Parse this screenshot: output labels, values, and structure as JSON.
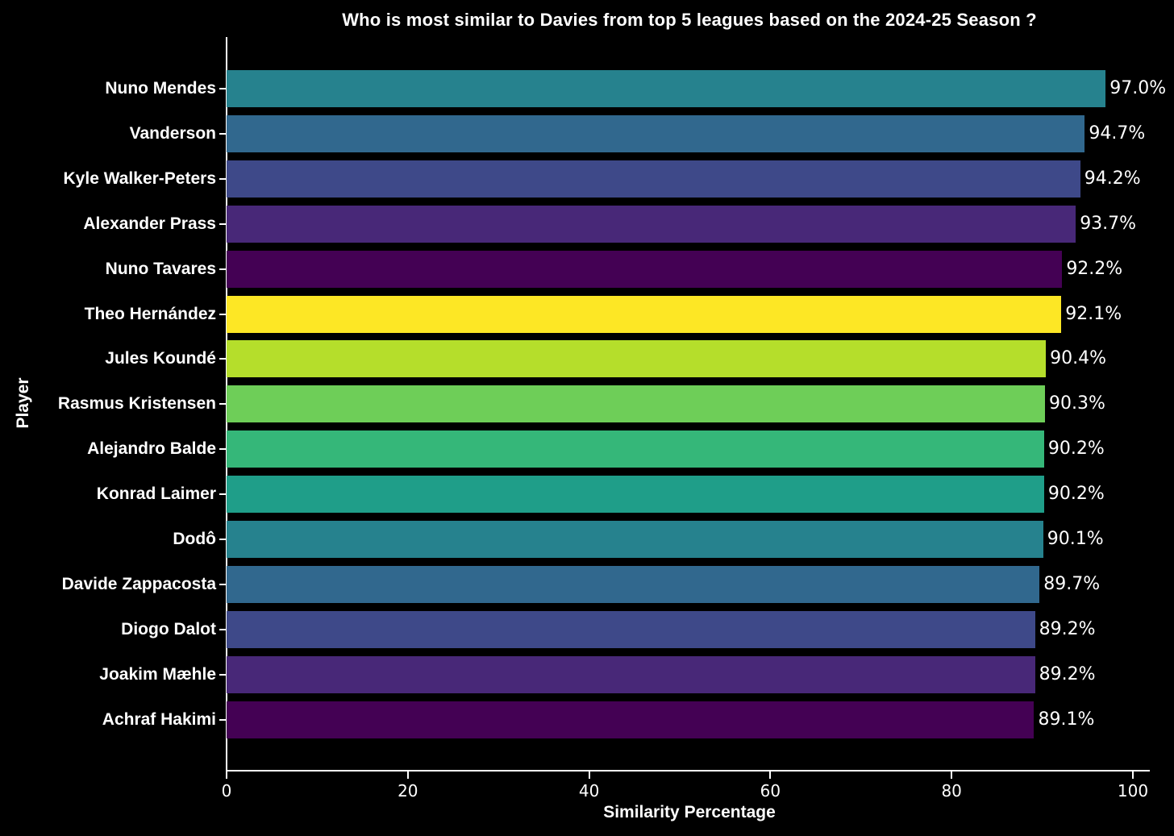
{
  "chart_data": {
    "type": "bar",
    "orientation": "horizontal",
    "title": "Who is most similar to Davies from top 5 leagues based on the 2024-25 Season ?",
    "xlabel": "Similarity Percentage",
    "ylabel": "Player",
    "xlim": [
      0,
      100
    ],
    "xticks": [
      0,
      20,
      40,
      60,
      80,
      100
    ],
    "xtick_labels": [
      "0",
      "20",
      "40",
      "60",
      "80",
      "100"
    ],
    "grid": false,
    "legend": "none",
    "background_color": "#000000",
    "text_color": "#ffffff",
    "axis_color": "#ffffff",
    "categories": [
      "Nuno Mendes",
      "Vanderson",
      "Kyle Walker-Peters",
      "Alexander Prass",
      "Nuno Tavares",
      "Theo Hernández",
      "Jules Koundé",
      "Rasmus Kristensen",
      "Alejandro Balde",
      "Konrad Laimer",
      "Dodô",
      "Davide Zappacosta",
      "Diogo Dalot",
      "Joakim Mæhle",
      "Achraf Hakimi"
    ],
    "values": [
      97.0,
      94.7,
      94.2,
      93.7,
      92.2,
      92.1,
      90.4,
      90.3,
      90.2,
      90.2,
      90.1,
      89.7,
      89.2,
      89.2,
      89.1
    ],
    "value_labels": [
      "97.0%",
      "94.7%",
      "94.2%",
      "93.7%",
      "92.2%",
      "92.1%",
      "90.4%",
      "90.3%",
      "90.2%",
      "90.2%",
      "90.1%",
      "89.7%",
      "89.2%",
      "89.2%",
      "89.1%"
    ],
    "bar_colors": [
      "#26828e",
      "#31688e",
      "#3e4989",
      "#482878",
      "#440154",
      "#fde725",
      "#b5de2b",
      "#6ece58",
      "#35b779",
      "#1f9e89",
      "#26828e",
      "#31688e",
      "#3e4989",
      "#482878",
      "#440154"
    ]
  }
}
